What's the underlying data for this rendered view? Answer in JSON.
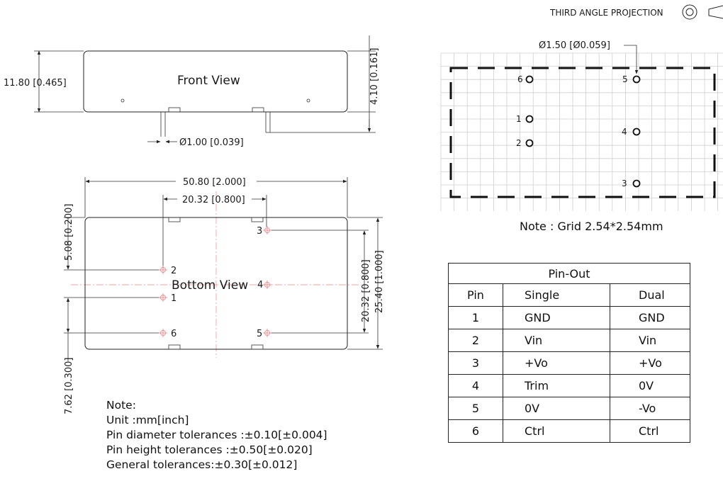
{
  "projection": "THIRD ANGLE PROJECTION",
  "front_view": {
    "title": "Front View",
    "height_dim": "11.80 [0.465]",
    "pin_height_dim": "4.10 [0.161]",
    "pin_diameter_dim": "Ø1.00 [0.039]"
  },
  "bottom_view": {
    "title": "Bottom View",
    "width_dim": "50.80 [2.000]",
    "pin_spacing_dim": "20.32 [0.800]",
    "left_top_dim": "5.08 [0.200]",
    "left_bottom_dim": "7.62 [0.300]",
    "right_inner_dim": "20.32 [0.800]",
    "right_outer_dim": "25.40 [1.000]",
    "pin_labels": [
      "1",
      "2",
      "3",
      "4",
      "5",
      "6"
    ]
  },
  "grid_view": {
    "hole_dim": "Ø1.50 [Ø0.059]",
    "pin_labels": [
      "1",
      "2",
      "3",
      "4",
      "5",
      "6"
    ],
    "note": "Note : Grid 2.54*2.54mm"
  },
  "notes": {
    "heading": "Note:",
    "lines": [
      "Unit :mm[inch]",
      "Pin diameter tolerances :±0.10[±0.004]",
      "Pin height tolerances :±0.50[±0.020]",
      "General tolerances:±0.30[±0.012]"
    ]
  },
  "pinout": {
    "title": "Pin-Out",
    "headers": [
      "Pin",
      "Single",
      "Dual"
    ],
    "rows": [
      [
        "1",
        "GND",
        "GND"
      ],
      [
        "2",
        "Vin",
        "Vin"
      ],
      [
        "3",
        "+Vo",
        "+Vo"
      ],
      [
        "4",
        "Trim",
        "0V"
      ],
      [
        "5",
        "0V",
        "-Vo"
      ],
      [
        "6",
        "Ctrl",
        "Ctrl"
      ]
    ]
  }
}
